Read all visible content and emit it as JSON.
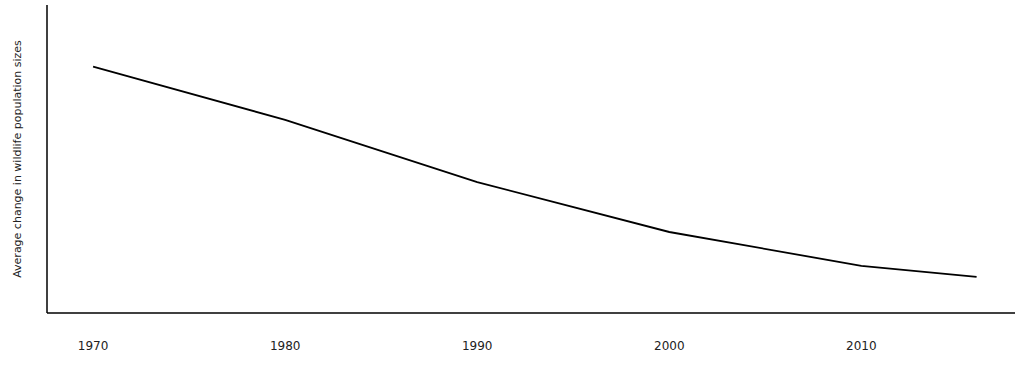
{
  "chart_data": {
    "type": "line",
    "y_label": "Average change in wildlife population sizes",
    "x": [
      1970,
      1980,
      1990,
      2000,
      2010,
      2016
    ],
    "values": [
      80,
      62.7,
      42.5,
      26.3,
      15.3,
      11.7
    ],
    "color": "#000000",
    "line_style": "solid",
    "marker": "none",
    "xlim": [
      1967.6,
      2018
    ],
    "xticks": [
      1970,
      1980,
      1990,
      2000,
      2010
    ],
    "ylim": [
      0,
      100
    ],
    "tick_labels": "x",
    "grid": false
  }
}
